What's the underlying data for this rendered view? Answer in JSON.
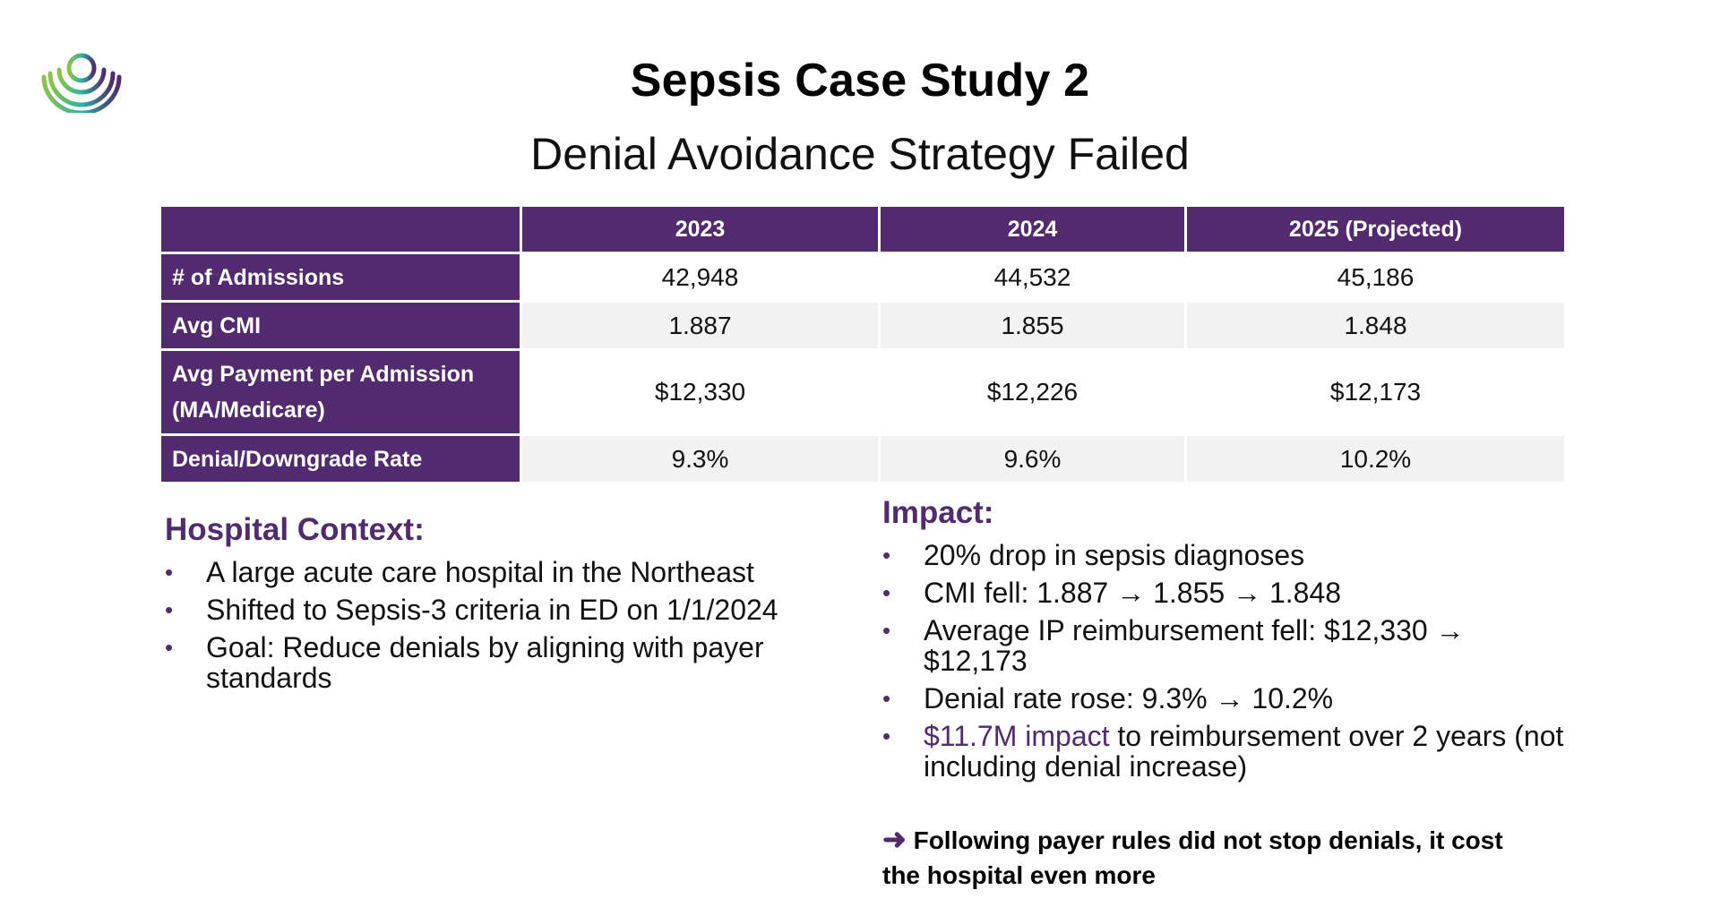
{
  "slide": {
    "title": "Sepsis Case Study 2",
    "subtitle": "Denial Avoidance Strategy Failed"
  },
  "table": {
    "headers": [
      "",
      "2023",
      "2024",
      "2025 (Projected)"
    ],
    "rows": [
      {
        "label": "# of Admissions",
        "values": [
          "42,948",
          "44,532",
          "45,186"
        ]
      },
      {
        "label": "Avg CMI",
        "values": [
          "1.887",
          "1.855",
          "1.848"
        ]
      },
      {
        "label_line1": "Avg Payment per Admission",
        "label_line2": "(MA/Medicare)",
        "values": [
          "$12,330",
          "$12,226",
          "$12,173"
        ]
      },
      {
        "label": "Denial/Downgrade Rate",
        "values": [
          "9.3%",
          "9.6%",
          "10.2%"
        ]
      }
    ]
  },
  "context": {
    "heading": "Hospital Context:",
    "bullets": [
      "A large acute care hospital in the Northeast",
      "Shifted to Sepsis-3 criteria in ED on 1/1/2024",
      "Goal: Reduce denials by aligning with payer standards"
    ]
  },
  "impact": {
    "heading": "Impact:",
    "bullets": [
      "20% drop in sepsis diagnoses",
      "CMI fell: 1.887 → 1.855 → 1.848",
      "Average IP reimbursement fell: $12,330 → $12,173",
      "Denial rate rose: 9.3% → 10.2%"
    ],
    "last_bullet_highlight": "$11.7M impact",
    "last_bullet_rest": " to reimbursement over 2 years (not including denial increase)"
  },
  "conclusion": {
    "arrow": "➜",
    "text": " Following payer rules did not stop denials, it cost the hospital even more"
  },
  "colors": {
    "brand_purple": "#512b6e",
    "alt_row": "#f2f2f2",
    "logo_teal": "#2bb3a6",
    "logo_green": "#8bc34a"
  },
  "icons": {
    "logo": "concentric-arcs-logo",
    "bullet": "bullet-dot"
  }
}
